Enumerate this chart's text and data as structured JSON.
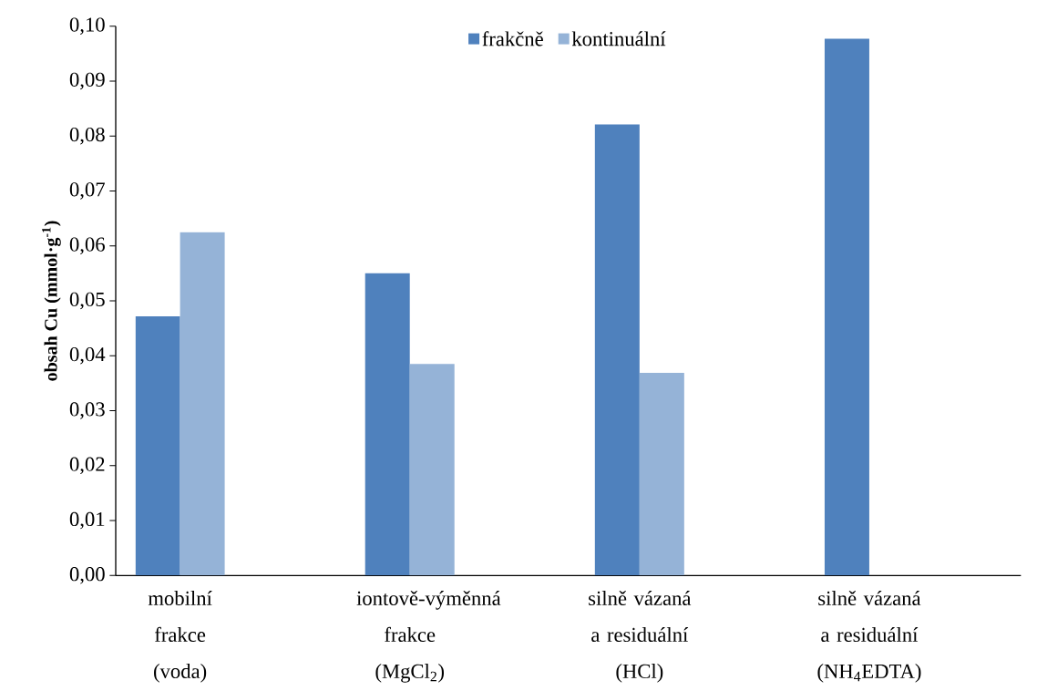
{
  "chart_data": {
    "type": "bar",
    "ylabel": "obsah Cu (mmol·g$^{-1}$)",
    "categories": [
      "mobilní frakce (voda)",
      "iontově-výměnná frakce (MgCl$_{2}$)",
      "silně vázaná a residuální (HCl)",
      "silně vázaná a residuální (NH$_{4}$EDTA)"
    ],
    "series": [
      {
        "name": "frakčně",
        "color": "#4f81bd",
        "values": [
          0.0472,
          0.055,
          0.0821,
          0.0977
        ]
      },
      {
        "name": "kontinuální",
        "color": "#95b3d7",
        "values": [
          0.0625,
          0.0385,
          0.0369,
          null
        ]
      }
    ],
    "ylim": [
      0,
      0.1
    ],
    "yticks": [
      {
        "value": 0,
        "label": "0,00"
      },
      {
        "value": 0.01,
        "label": "0,01"
      },
      {
        "value": 0.02,
        "label": "0,02"
      },
      {
        "value": 0.03,
        "label": "0,03"
      },
      {
        "value": 0.04,
        "label": "0,04"
      },
      {
        "value": 0.05,
        "label": "0,05"
      },
      {
        "value": 0.06,
        "label": "0,06"
      },
      {
        "value": 0.07,
        "label": "0,07"
      },
      {
        "value": 0.08,
        "label": "0,08"
      },
      {
        "value": 0.09,
        "label": "0,09"
      },
      {
        "value": 0.1,
        "label": "0,10"
      }
    ],
    "grid": false,
    "legend": "top"
  }
}
